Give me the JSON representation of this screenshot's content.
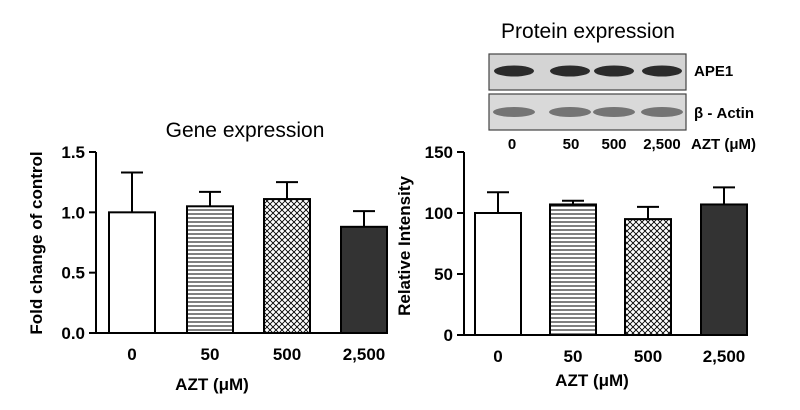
{
  "chart_data": [
    {
      "type": "bar",
      "title": "Gene expression",
      "xlabel": "AZT (μM)",
      "ylabel": "Fold change of control",
      "categories": [
        "0",
        "50",
        "500",
        "2,500"
      ],
      "values": [
        1.0,
        1.05,
        1.11,
        0.88
      ],
      "errors": [
        0.33,
        0.12,
        0.14,
        0.13
      ],
      "ylim": [
        0,
        1.5
      ],
      "yticks": [
        "0.0",
        "0.5",
        "1.0",
        "1.5"
      ],
      "fills": [
        "white",
        "horizontal-lines",
        "crosshatch",
        "#333333"
      ],
      "grid": false
    },
    {
      "type": "bar",
      "title": "Protein expression",
      "xlabel": "AZT (μM)",
      "ylabel": "Relative Intensity",
      "categories": [
        "0",
        "50",
        "500",
        "2,500"
      ],
      "values": [
        100,
        107,
        95,
        107
      ],
      "errors": [
        17,
        3,
        10,
        14
      ],
      "ylim": [
        0,
        150
      ],
      "yticks": [
        "0",
        "50",
        "100",
        "150"
      ],
      "fills": [
        "white",
        "horizontal-lines",
        "crosshatch",
        "#333333"
      ],
      "grid": false
    }
  ],
  "western_blot": {
    "rows": [
      "APE1",
      "β - Actin"
    ],
    "lanes": [
      "0",
      "50",
      "500",
      "2,500"
    ],
    "lane_axis_label": "AZT (μM)"
  }
}
